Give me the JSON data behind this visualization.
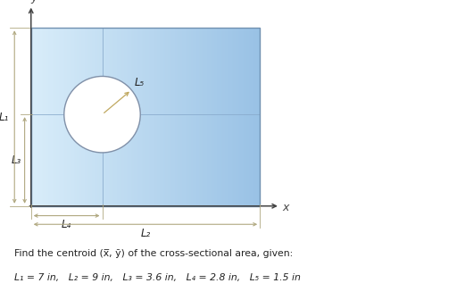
{
  "L1": 7,
  "L2": 9,
  "L3": 3.6,
  "L4": 2.8,
  "L5": 1.5,
  "rect_color_left": "#d0e8f8",
  "rect_color_right": "#a0bce0",
  "rect_edge_color": "#7090b0",
  "circle_fill_color": "white",
  "circle_edge_color": "#8090a8",
  "crosshair_color": "#88aacc",
  "axis_color": "#444444",
  "dim_arrow_color": "#b0a880",
  "dim_line_color": "#b0a880",
  "text_color": "#222222",
  "L5_arrow_color": "#c0a860",
  "title_text": "Find the centroid (x̅, ỹ) of the cross-sectional area, given:",
  "params_text": "L₁ = 7 in,   L₂ = 9 in,   L₃ = 3.6 in,   L₄ = 2.8 in,   L₅ = 1.5 in",
  "figsize": [
    5.21,
    3.36
  ],
  "dpi": 100,
  "bg_color": "white",
  "scale": 1.0
}
